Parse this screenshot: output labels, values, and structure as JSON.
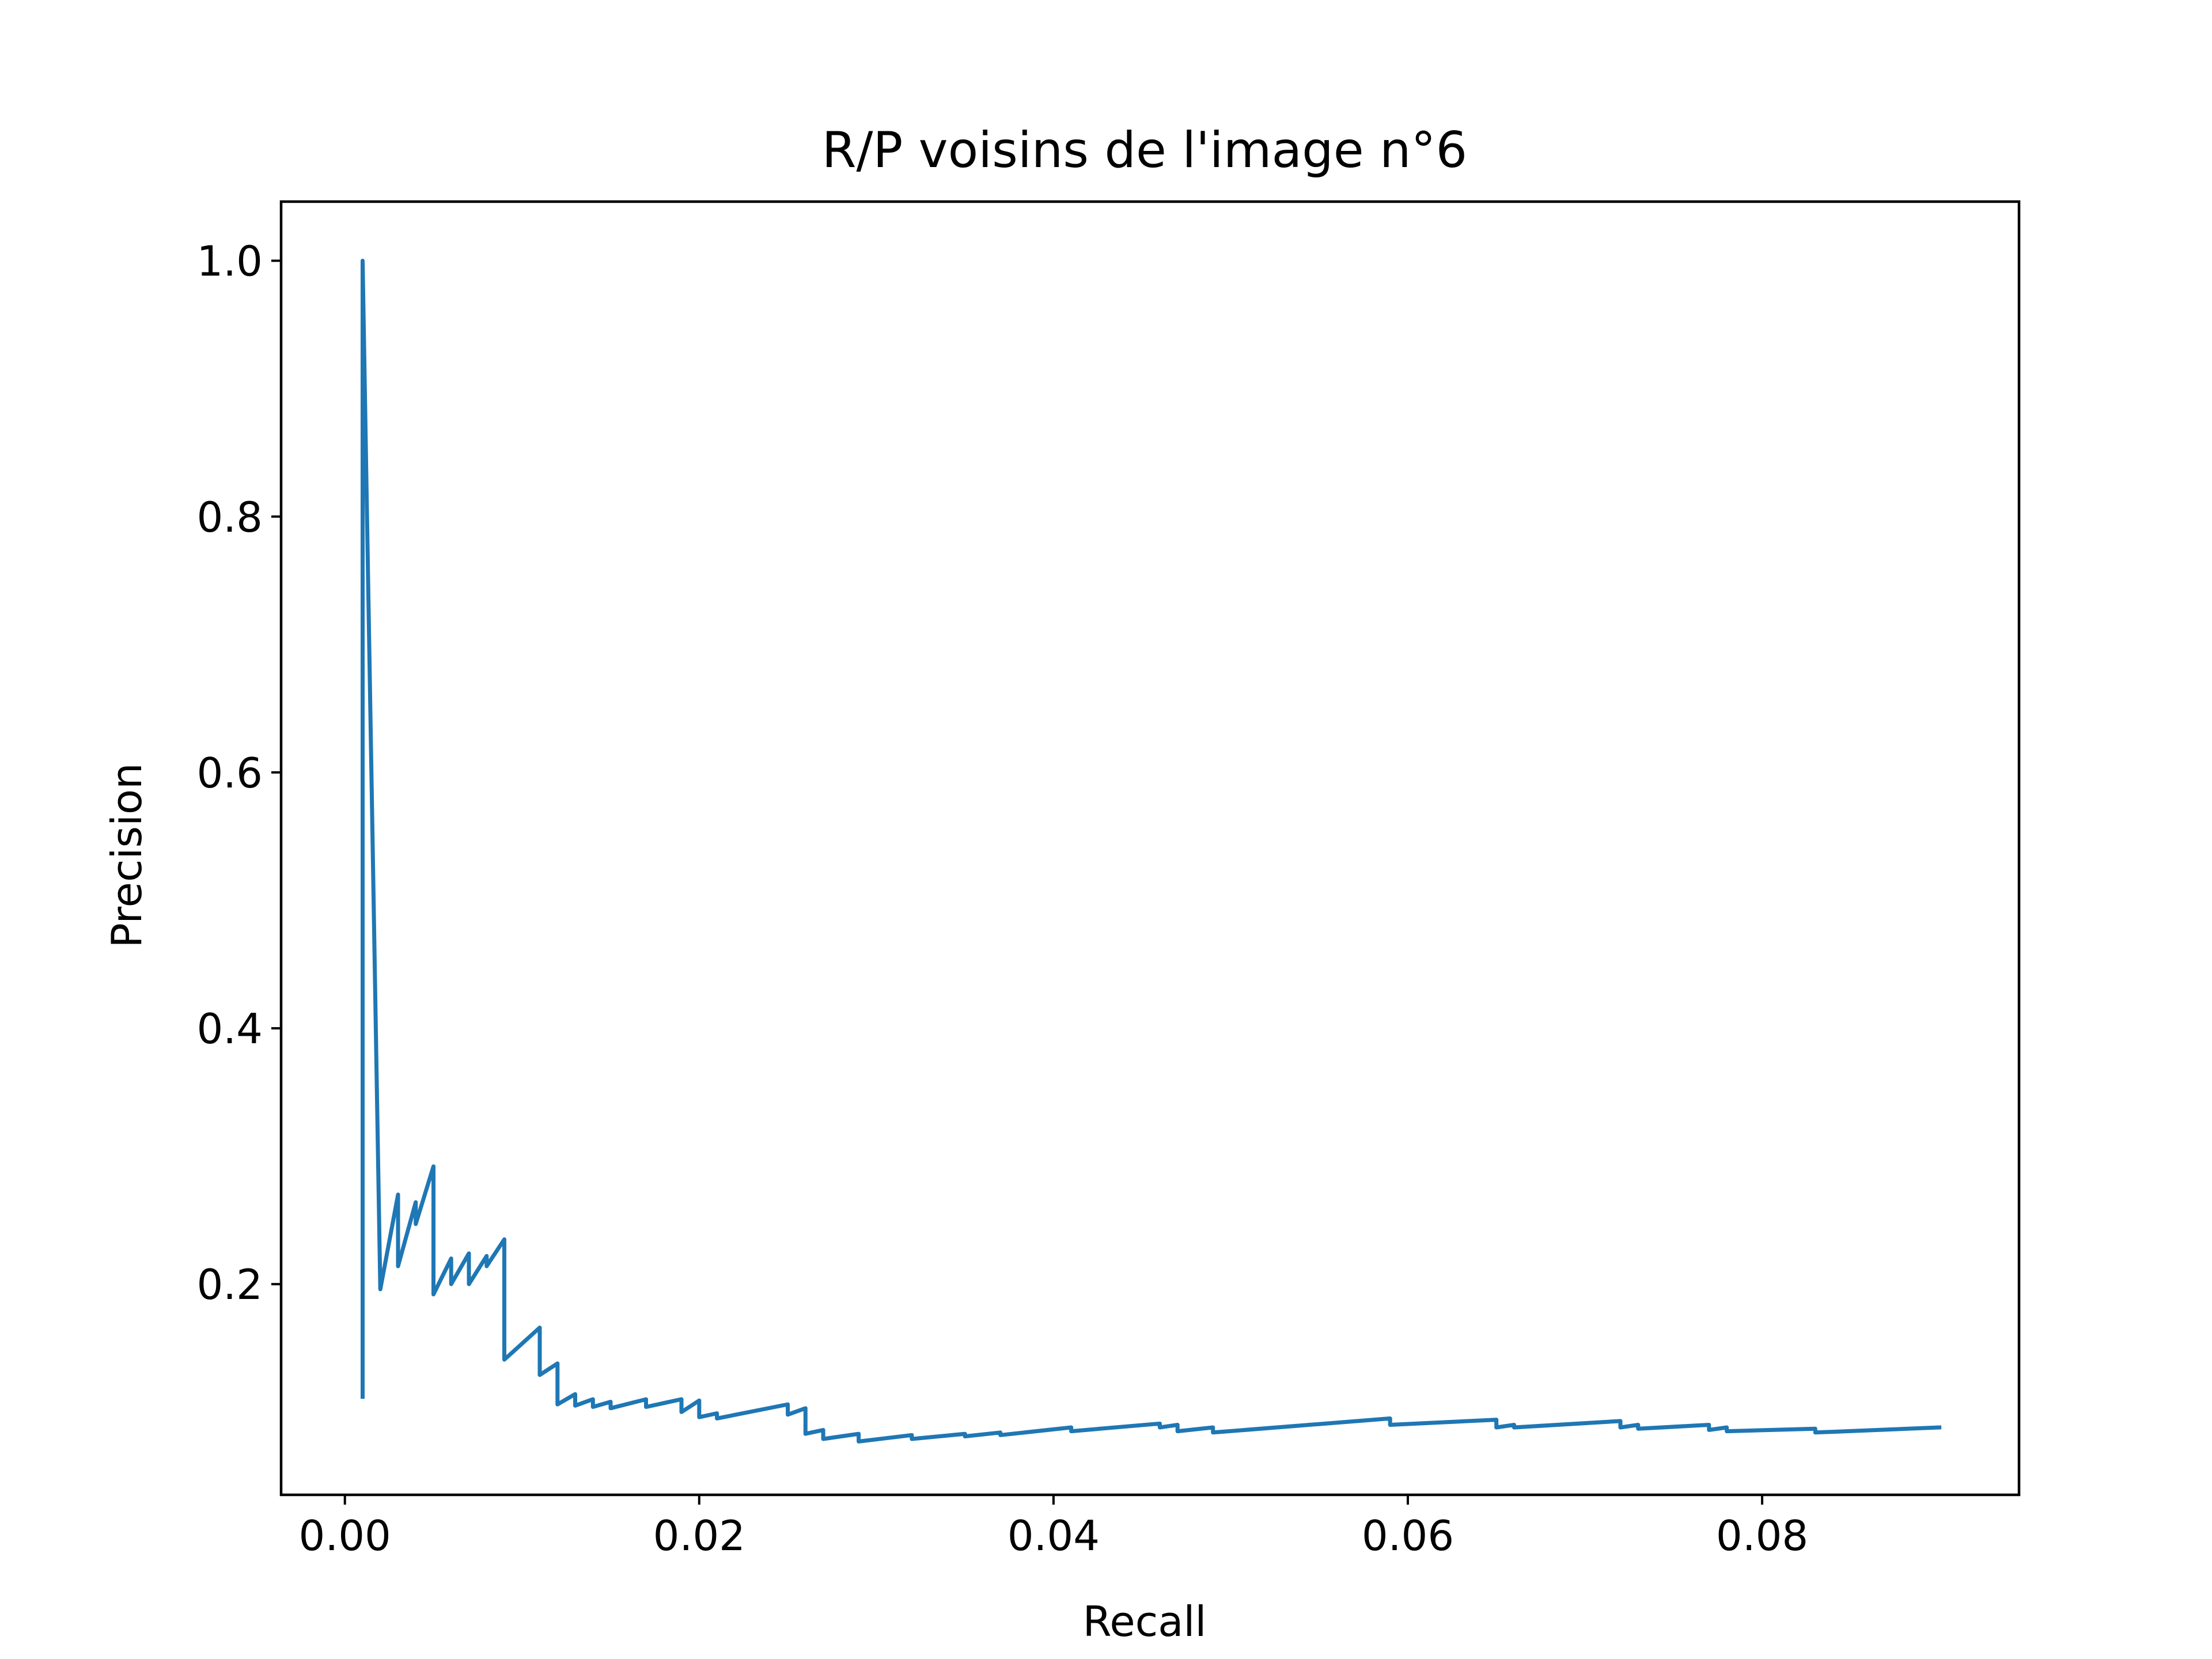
{
  "chart_data": {
    "type": "line",
    "title": "R/P voisins de l'image n°6",
    "xlabel": "Recall",
    "ylabel": "Precision",
    "xlim": [
      -0.0036,
      0.0945
    ],
    "ylim": [
      0.0353,
      1.0462
    ],
    "grid": false,
    "legend": "none",
    "xticks": [
      {
        "value": 0.0,
        "label": "0.00"
      },
      {
        "value": 0.02,
        "label": "0.02"
      },
      {
        "value": 0.04,
        "label": "0.04"
      },
      {
        "value": 0.06,
        "label": "0.06"
      },
      {
        "value": 0.08,
        "label": "0.08"
      }
    ],
    "yticks": [
      {
        "value": 0.2,
        "label": "0.2"
      },
      {
        "value": 0.4,
        "label": "0.4"
      },
      {
        "value": 0.6,
        "label": "0.6"
      },
      {
        "value": 0.8,
        "label": "0.8"
      },
      {
        "value": 1.0,
        "label": "1.0"
      }
    ],
    "series": [
      {
        "color": "#1f77b4",
        "x": [
          0.001,
          0.001,
          0.002,
          0.003,
          0.003,
          0.004,
          0.004,
          0.005,
          0.005,
          0.006,
          0.006,
          0.007,
          0.007,
          0.008,
          0.008,
          0.009,
          0.009,
          0.011,
          0.011,
          0.012,
          0.012,
          0.013,
          0.013,
          0.014,
          0.014,
          0.015,
          0.015,
          0.017,
          0.017,
          0.019,
          0.019,
          0.02,
          0.02,
          0.021,
          0.021,
          0.025,
          0.025,
          0.026,
          0.026,
          0.027,
          0.027,
          0.029,
          0.029,
          0.032,
          0.032,
          0.035,
          0.035,
          0.037,
          0.037,
          0.041,
          0.041,
          0.046,
          0.046,
          0.047,
          0.047,
          0.049,
          0.049,
          0.059,
          0.059,
          0.065,
          0.065,
          0.066,
          0.066,
          0.072,
          0.072,
          0.073,
          0.073,
          0.077,
          0.077,
          0.078,
          0.078,
          0.083,
          0.083,
          0.09
        ],
        "y": [
          0.112,
          1.0,
          0.196,
          0.27,
          0.214,
          0.264,
          0.247,
          0.292,
          0.192,
          0.22,
          0.2,
          0.224,
          0.2,
          0.222,
          0.214,
          0.235,
          0.141,
          0.166,
          0.129,
          0.138,
          0.106,
          0.114,
          0.105,
          0.11,
          0.104,
          0.108,
          0.103,
          0.11,
          0.104,
          0.11,
          0.1,
          0.109,
          0.096,
          0.099,
          0.095,
          0.106,
          0.098,
          0.103,
          0.083,
          0.086,
          0.079,
          0.083,
          0.077,
          0.082,
          0.079,
          0.083,
          0.081,
          0.084,
          0.082,
          0.088,
          0.085,
          0.091,
          0.088,
          0.09,
          0.085,
          0.088,
          0.084,
          0.095,
          0.09,
          0.094,
          0.088,
          0.09,
          0.088,
          0.093,
          0.088,
          0.09,
          0.087,
          0.09,
          0.086,
          0.088,
          0.085,
          0.087,
          0.084,
          0.088
        ]
      }
    ]
  }
}
